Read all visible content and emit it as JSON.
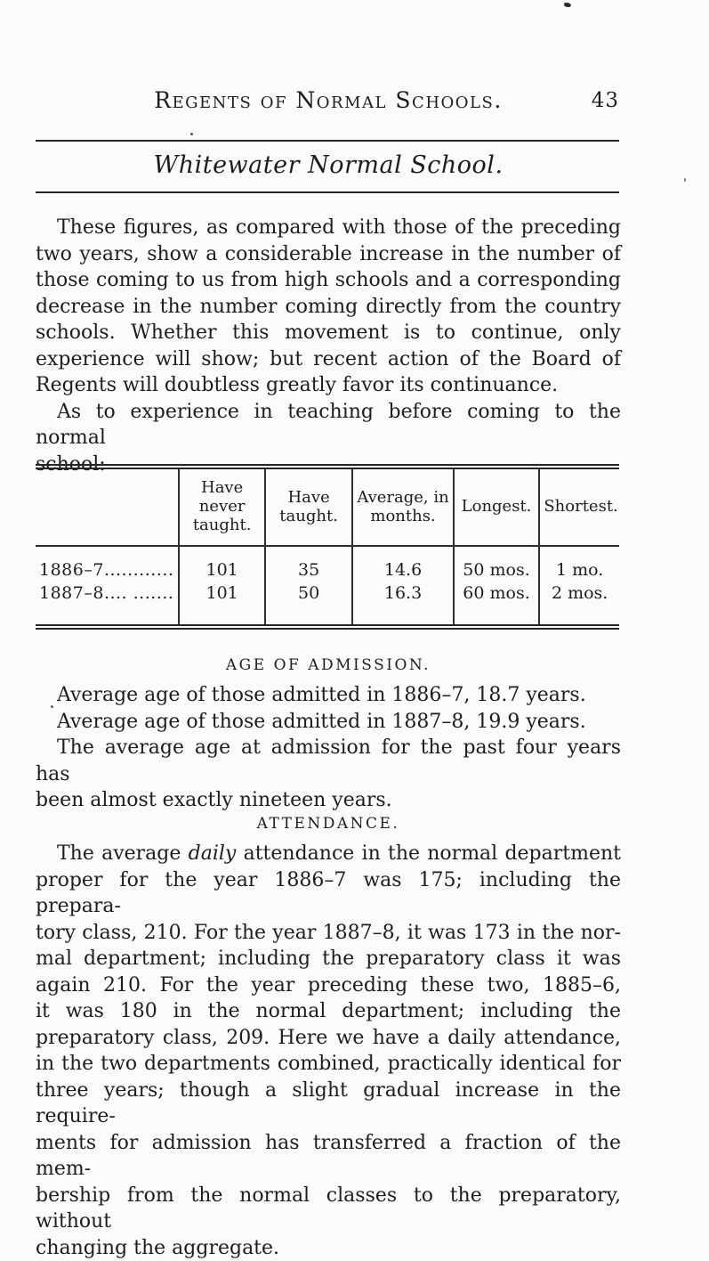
{
  "header": {
    "running_title": "Regents of Normal Schools.",
    "page_number": "43"
  },
  "title": "Whitewater Normal School.",
  "para1_lines": [
    "These figures, as compared with those of the preceding",
    "two years, show a considerable increase in the number of",
    "those coming to us from high schools and a corresponding",
    "decrease in the number coming directly from the country",
    "schools. Whether this movement is to continue, only",
    "experience will show; but recent action of the Board of",
    "Regents will doubtless greatly favor its continuance."
  ],
  "para2_lines": [
    "As to experience in teaching before coming to the normal",
    "school:"
  ],
  "table": {
    "col_headers": [
      "",
      "Have never taught.",
      "Have taught.",
      "Average, in months.",
      "Longest.",
      "Shortest."
    ],
    "rows": [
      {
        "year": "1886–7............",
        "have_never_taught": "101",
        "have_taught": "35",
        "average_months": "14.6",
        "longest": "50 mos.",
        "shortest": "1 mo."
      },
      {
        "year": "1887–8.... .......",
        "have_never_taught": "101",
        "have_taught": "50",
        "average_months": "16.3",
        "longest": "60 mos.",
        "shortest": "2 mos."
      }
    ]
  },
  "age_of_admission": {
    "heading": "AGE OF ADMISSION.",
    "line1": "Average age of those admitted in 1886–7, 18.7 years.",
    "line2": "Average age of those admitted in 1887–8, 19.9 years.",
    "line3": "The average age at admission for the past four years has",
    "line4": "been almost exactly nineteen years."
  },
  "attendance": {
    "heading": "ATTENDANCE.",
    "line1_pre": "The average ",
    "line1_italic": "daily",
    "line1_post": " attendance in the normal department",
    "lines": [
      "proper for the year 1886–7 was 175; including the prepara-",
      "tory class, 210. For the year 1887–8, it was 173 in the nor-",
      "mal department; including the preparatory class it was",
      "again 210. For the year preceding these two, 1885–6,",
      "it was 180 in the normal department; including the",
      "preparatory class, 209. Here we have a daily attendance,",
      "in the two departments combined, practically identical for",
      "three years; though a slight gradual increase in the require-",
      "ments for admission has transferred a fraction of the mem-",
      "bership from the normal classes to the preparatory, without",
      "changing the aggregate."
    ]
  }
}
